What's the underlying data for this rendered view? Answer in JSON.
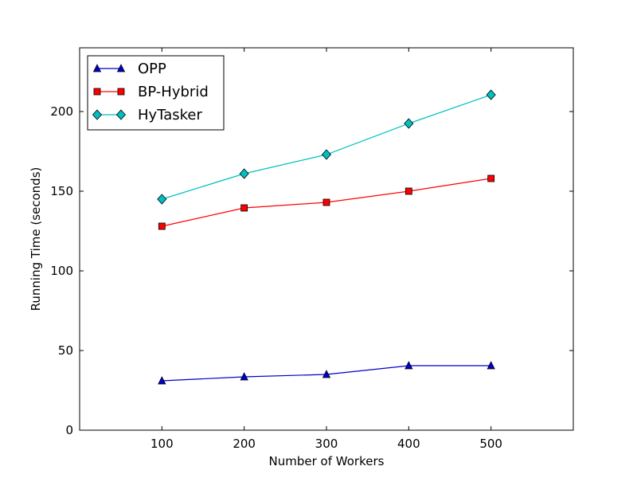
{
  "chart_data": {
    "type": "line",
    "xlabel": "Number of Workers",
    "ylabel": "Running Time (seconds)",
    "xlim": [
      0,
      600
    ],
    "ylim": [
      0,
      240
    ],
    "x_ticks": [
      100,
      200,
      300,
      400,
      500
    ],
    "y_ticks": [
      0,
      50,
      100,
      150,
      200
    ],
    "x": [
      100,
      200,
      300,
      400,
      500
    ],
    "legend_position": "top-left",
    "grid": false,
    "series": [
      {
        "name": "OPP",
        "values": [
          31,
          33.5,
          35,
          40.5,
          40.5
        ],
        "color": "#0000cc",
        "marker": "triangle"
      },
      {
        "name": "BP-Hybrid",
        "values": [
          128,
          139.5,
          143,
          150,
          158
        ],
        "color": "#ff0000",
        "marker": "square"
      },
      {
        "name": "HyTasker",
        "values": [
          145,
          161,
          173,
          192.5,
          210.5
        ],
        "color": "#00bfbf",
        "marker": "diamond"
      }
    ]
  }
}
